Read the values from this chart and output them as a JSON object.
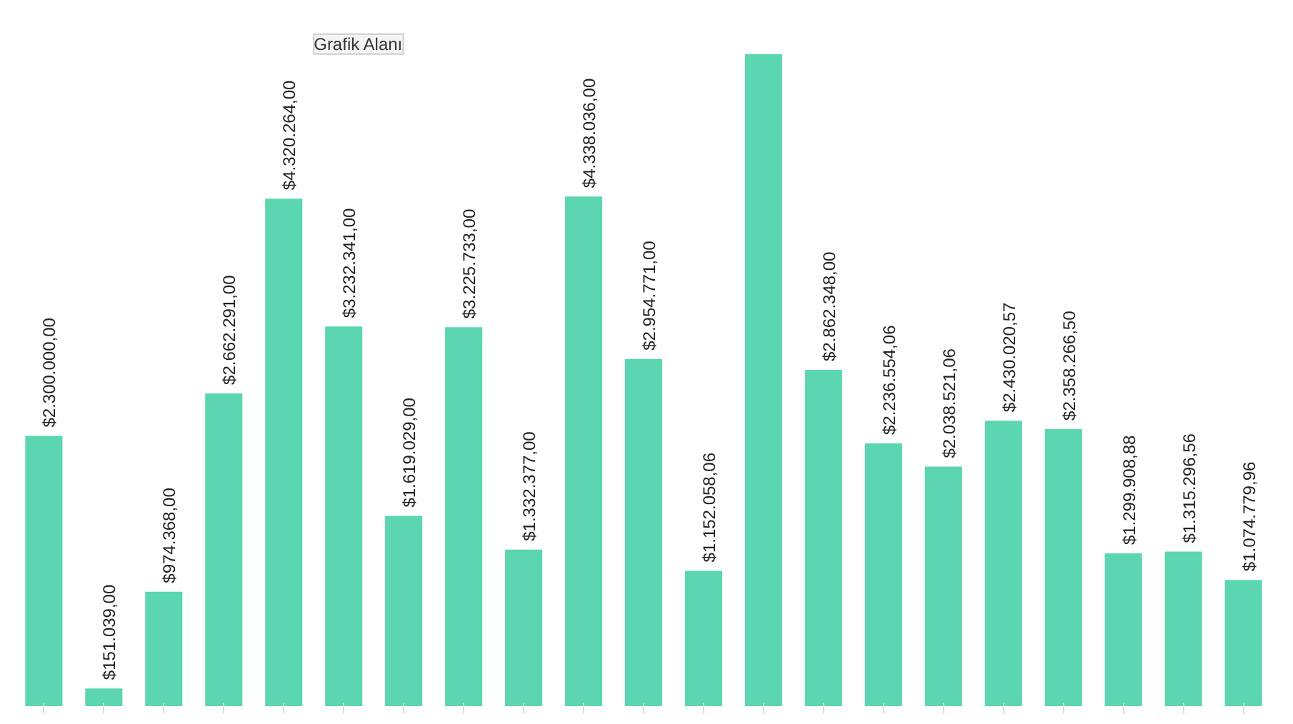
{
  "chart_data": {
    "type": "bar",
    "categories": [
      null,
      null,
      null,
      null,
      null,
      null,
      null,
      null,
      null,
      null,
      null,
      null,
      null,
      null,
      null,
      null,
      null,
      null,
      null,
      null,
      null
    ],
    "values": [
      2300000,
      151039,
      974368,
      2662291,
      4320264,
      3232341,
      1619029,
      3225733,
      1332377,
      4338036,
      2954771,
      1152058.06,
      5550000,
      2862348,
      2236554.06,
      2038521.06,
      2430020.57,
      2358266.5,
      1299908.88,
      1315296.56,
      1074779.96
    ],
    "value_labels": [
      "$2.300.000,00",
      "$151.039,00",
      "$974.368,00",
      "$2.662.291,00",
      "$4.320.264,00",
      "$3.232.341,00",
      "$1.619.029,00",
      "$3.225.733,00",
      "$1.332.377,00",
      "$4.338.036,00",
      "$2.954.771,00",
      "$1.152.058,06",
      null,
      "$2.862.348,00",
      "$2.236.554,06",
      "$2.038.521,06",
      "$2.430.020,57",
      "$2.358.266,50",
      "$1.299.908,88",
      "$1.315.296,56",
      "$1.074.779,96"
    ],
    "color": "#5cd6b0",
    "annotations": [
      "Grafik Alanı"
    ],
    "grid": false
  }
}
